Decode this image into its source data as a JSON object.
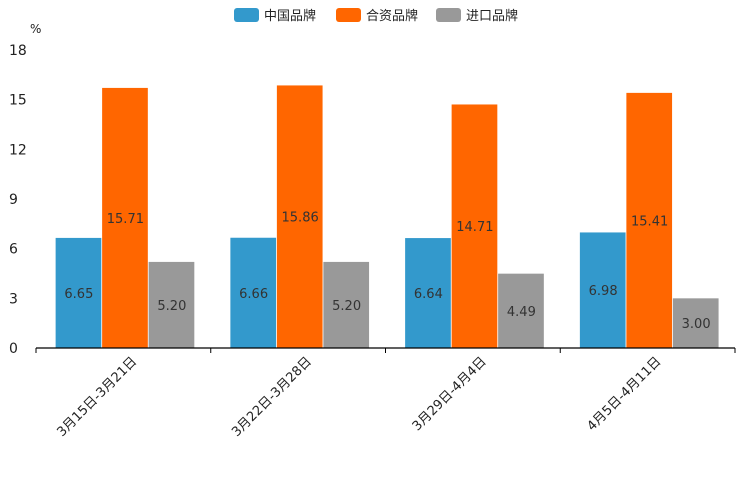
{
  "chart_data": {
    "type": "bar",
    "unit": "%",
    "categories": [
      "3月15日-3月21日",
      "3月22日-3月28日",
      "3月29日-4月4日",
      "4月5日-4月11日"
    ],
    "series": [
      {
        "name": "中国品牌",
        "color": "#3399cc",
        "values": [
          6.65,
          6.66,
          6.64,
          6.98
        ],
        "labels": [
          "6.65",
          "6.66",
          "6.64",
          "6.98"
        ]
      },
      {
        "name": "合资品牌",
        "color": "#ff6600",
        "values": [
          15.71,
          15.86,
          14.71,
          15.41
        ],
        "labels": [
          "15.71",
          "15.86",
          "14.71",
          "15.41"
        ]
      },
      {
        "name": "进口品牌",
        "color": "#999999",
        "values": [
          5.2,
          5.2,
          4.49,
          3.0
        ],
        "labels": [
          "5.20",
          "5.20",
          "4.49",
          "3.00"
        ]
      }
    ],
    "ylim": [
      0,
      18
    ],
    "yticks": [
      0,
      3,
      6,
      9,
      12,
      15,
      18
    ],
    "legend_position": "top-center",
    "grid": false
  }
}
